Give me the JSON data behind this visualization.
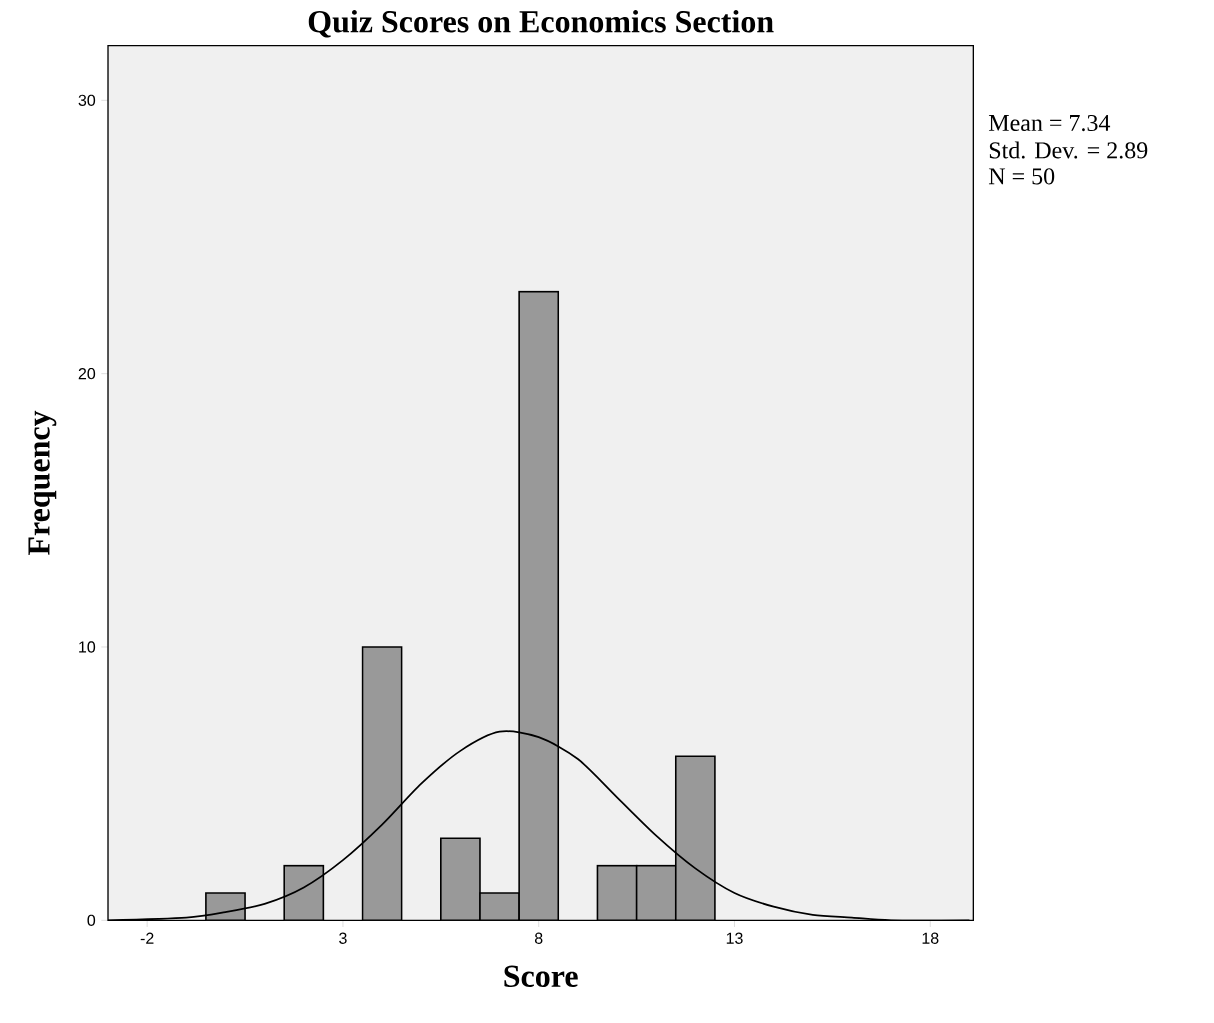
{
  "chart_data": {
    "type": "histogram",
    "title": "Quiz Scores on Economics Section",
    "xlabel": "Score",
    "ylabel": "Frequency",
    "bins": [
      -0.5,
      0.5,
      1.5,
      2.5,
      3.5,
      4.5,
      5.5,
      6.5,
      7.5,
      8.5,
      9.5,
      10.5,
      11.5,
      12.5
    ],
    "series": [
      {
        "color": "#999999",
        "values": [
          1,
          0,
          2,
          0,
          10,
          0,
          3,
          1,
          23,
          0,
          2,
          2,
          6
        ]
      },
      {
        "type": "line",
        "color": "#000000",
        "x": [
          -3,
          -1,
          0,
          1,
          2,
          3,
          4,
          5,
          6,
          7,
          8,
          9,
          10,
          11,
          12,
          13,
          14,
          15,
          16,
          17,
          19
        ],
        "values": [
          0.0,
          0.1,
          0.3,
          0.6,
          1.2,
          2.2,
          3.5,
          5.0,
          6.2,
          6.9,
          6.7,
          5.9,
          4.5,
          3.1,
          1.9,
          1.0,
          0.5,
          0.2,
          0.1,
          0.0,
          0.0
        ]
      }
    ],
    "xlim": [
      -3,
      19.1
    ],
    "ylim": [
      0,
      32
    ],
    "xticks": [
      -2,
      3,
      8,
      13,
      18
    ],
    "yticks": [
      0,
      10,
      20,
      30
    ],
    "grid": false,
    "annotations": [
      "Mean = 7.34",
      "Std. Dev. = 2.89",
      "N = 50"
    ]
  }
}
